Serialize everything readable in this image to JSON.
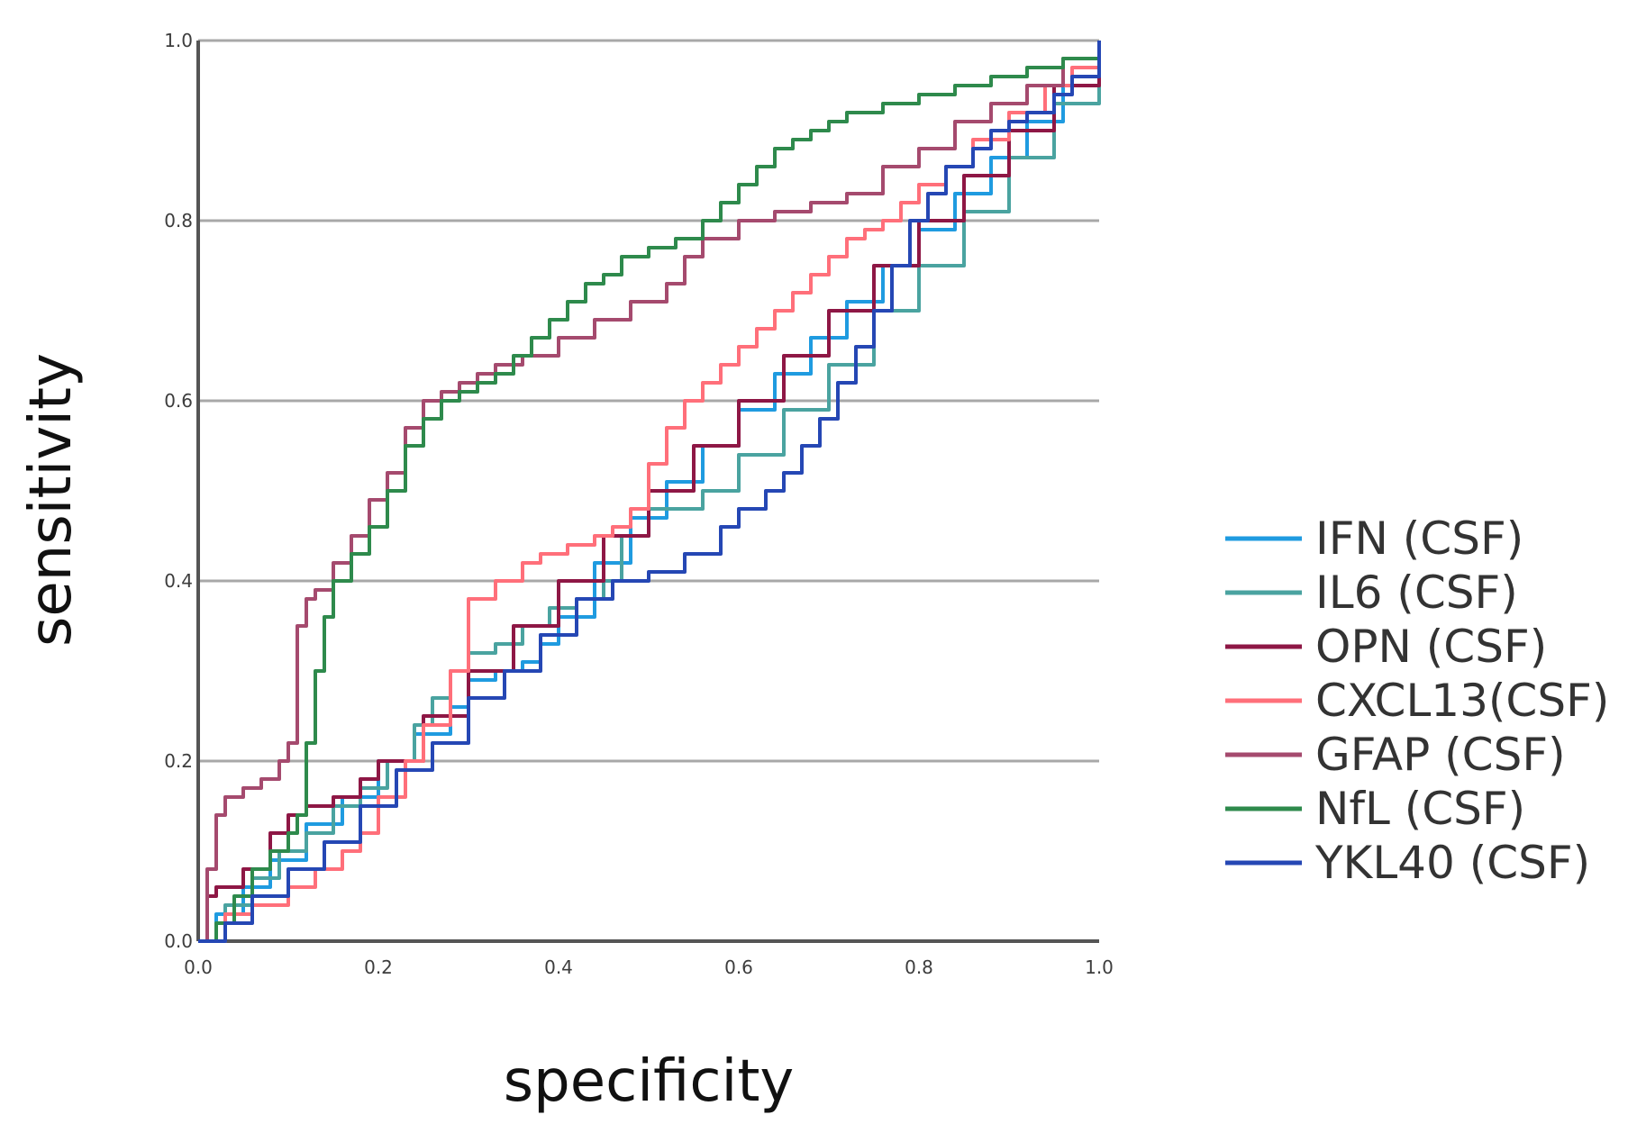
{
  "chart_data": {
    "type": "line",
    "title": "",
    "xlabel": "specificity",
    "ylabel": "sensitivity",
    "xlim": [
      0,
      1
    ],
    "ylim": [
      0,
      1
    ],
    "x_ticks": [
      "0.0",
      "0.2",
      "0.4",
      "0.6",
      "0.8",
      "1.0"
    ],
    "y_ticks": [
      "0.0",
      "0.2",
      "0.4",
      "0.6",
      "0.8",
      "1.0"
    ],
    "grid": "horizontal",
    "legend_position": "right",
    "series": [
      {
        "name": "IFN  (CSF)",
        "color": "#1f9be0",
        "x": [
          0,
          0.02,
          0.05,
          0.08,
          0.12,
          0.16,
          0.2,
          0.24,
          0.28,
          0.3,
          0.33,
          0.36,
          0.38,
          0.4,
          0.44,
          0.48,
          0.52,
          0.56,
          0.6,
          0.64,
          0.68,
          0.72,
          0.76,
          0.8,
          0.84,
          0.88,
          0.92,
          0.96,
          1
        ],
        "y": [
          0,
          0.03,
          0.06,
          0.09,
          0.13,
          0.16,
          0.2,
          0.23,
          0.26,
          0.29,
          0.3,
          0.31,
          0.33,
          0.36,
          0.42,
          0.47,
          0.51,
          0.55,
          0.59,
          0.63,
          0.67,
          0.71,
          0.75,
          0.79,
          0.83,
          0.87,
          0.91,
          0.95,
          1
        ]
      },
      {
        "name": "IL6 (CSF)",
        "color": "#4aa3a0",
        "x": [
          0,
          0.03,
          0.06,
          0.09,
          0.12,
          0.15,
          0.18,
          0.21,
          0.24,
          0.26,
          0.28,
          0.3,
          0.33,
          0.36,
          0.39,
          0.42,
          0.45,
          0.47,
          0.5,
          0.54,
          0.56,
          0.6,
          0.65,
          0.7,
          0.75,
          0.8,
          0.85,
          0.9,
          0.95,
          1
        ],
        "y": [
          0,
          0.04,
          0.07,
          0.1,
          0.12,
          0.15,
          0.17,
          0.2,
          0.24,
          0.27,
          0.3,
          0.32,
          0.33,
          0.35,
          0.37,
          0.38,
          0.4,
          0.45,
          0.48,
          0.48,
          0.5,
          0.54,
          0.59,
          0.64,
          0.7,
          0.75,
          0.81,
          0.87,
          0.93,
          1
        ]
      },
      {
        "name": "OPN (CSF)",
        "color": "#8e1745",
        "x": [
          0,
          0.01,
          0.02,
          0.05,
          0.08,
          0.1,
          0.12,
          0.15,
          0.18,
          0.2,
          0.25,
          0.3,
          0.35,
          0.4,
          0.45,
          0.5,
          0.55,
          0.6,
          0.65,
          0.7,
          0.75,
          0.8,
          0.85,
          0.9,
          0.95,
          1
        ],
        "y": [
          0,
          0.05,
          0.06,
          0.08,
          0.12,
          0.14,
          0.15,
          0.16,
          0.18,
          0.2,
          0.25,
          0.3,
          0.35,
          0.4,
          0.45,
          0.5,
          0.55,
          0.6,
          0.65,
          0.7,
          0.75,
          0.8,
          0.85,
          0.9,
          0.95,
          1
        ]
      },
      {
        "name": "CXCL13(CSF)",
        "color": "#ff6f7a",
        "x": [
          0,
          0.03,
          0.06,
          0.1,
          0.13,
          0.16,
          0.18,
          0.2,
          0.23,
          0.25,
          0.28,
          0.3,
          0.33,
          0.36,
          0.38,
          0.41,
          0.44,
          0.46,
          0.48,
          0.5,
          0.52,
          0.54,
          0.56,
          0.58,
          0.6,
          0.62,
          0.64,
          0.66,
          0.68,
          0.7,
          0.72,
          0.74,
          0.76,
          0.78,
          0.8,
          0.83,
          0.86,
          0.9,
          0.94,
          0.97,
          1
        ],
        "y": [
          0,
          0.03,
          0.04,
          0.06,
          0.08,
          0.1,
          0.12,
          0.16,
          0.2,
          0.24,
          0.3,
          0.38,
          0.4,
          0.42,
          0.43,
          0.44,
          0.45,
          0.46,
          0.48,
          0.53,
          0.57,
          0.6,
          0.62,
          0.64,
          0.66,
          0.68,
          0.7,
          0.72,
          0.74,
          0.76,
          0.78,
          0.79,
          0.8,
          0.82,
          0.84,
          0.86,
          0.89,
          0.92,
          0.95,
          0.97,
          1
        ]
      },
      {
        "name": "GFAP (CSF)",
        "color": "#a54a6e",
        "x": [
          0,
          0.01,
          0.02,
          0.03,
          0.05,
          0.07,
          0.09,
          0.1,
          0.11,
          0.12,
          0.13,
          0.15,
          0.17,
          0.19,
          0.21,
          0.23,
          0.25,
          0.27,
          0.29,
          0.31,
          0.33,
          0.36,
          0.4,
          0.44,
          0.48,
          0.52,
          0.54,
          0.56,
          0.6,
          0.64,
          0.68,
          0.72,
          0.76,
          0.8,
          0.84,
          0.88,
          0.92,
          0.96,
          1
        ],
        "y": [
          0,
          0.08,
          0.14,
          0.16,
          0.17,
          0.18,
          0.2,
          0.22,
          0.35,
          0.38,
          0.39,
          0.42,
          0.45,
          0.49,
          0.52,
          0.57,
          0.6,
          0.61,
          0.62,
          0.63,
          0.64,
          0.65,
          0.67,
          0.69,
          0.71,
          0.73,
          0.76,
          0.78,
          0.8,
          0.81,
          0.82,
          0.83,
          0.86,
          0.88,
          0.91,
          0.93,
          0.95,
          0.98,
          1
        ]
      },
      {
        "name": "NfL (CSF)",
        "color": "#2e8a4c",
        "x": [
          0,
          0.02,
          0.04,
          0.06,
          0.08,
          0.1,
          0.11,
          0.12,
          0.13,
          0.14,
          0.15,
          0.17,
          0.19,
          0.21,
          0.23,
          0.25,
          0.27,
          0.29,
          0.31,
          0.33,
          0.35,
          0.37,
          0.39,
          0.41,
          0.43,
          0.45,
          0.47,
          0.5,
          0.53,
          0.56,
          0.58,
          0.6,
          0.62,
          0.64,
          0.66,
          0.68,
          0.7,
          0.72,
          0.76,
          0.8,
          0.84,
          0.88,
          0.92,
          0.96,
          1
        ],
        "y": [
          0,
          0.02,
          0.05,
          0.08,
          0.1,
          0.12,
          0.14,
          0.22,
          0.3,
          0.36,
          0.4,
          0.43,
          0.46,
          0.5,
          0.55,
          0.58,
          0.6,
          0.61,
          0.62,
          0.63,
          0.65,
          0.67,
          0.69,
          0.71,
          0.73,
          0.74,
          0.76,
          0.77,
          0.78,
          0.8,
          0.82,
          0.84,
          0.86,
          0.88,
          0.89,
          0.9,
          0.91,
          0.92,
          0.93,
          0.94,
          0.95,
          0.96,
          0.97,
          0.98,
          1
        ]
      },
      {
        "name": "YKL40 (CSF)",
        "color": "#2547b4",
        "x": [
          0,
          0.03,
          0.06,
          0.1,
          0.14,
          0.18,
          0.22,
          0.26,
          0.3,
          0.34,
          0.38,
          0.42,
          0.46,
          0.5,
          0.54,
          0.58,
          0.6,
          0.63,
          0.65,
          0.67,
          0.69,
          0.71,
          0.73,
          0.75,
          0.77,
          0.79,
          0.81,
          0.83,
          0.86,
          0.88,
          0.9,
          0.92,
          0.95,
          0.97,
          1
        ],
        "y": [
          0,
          0.02,
          0.05,
          0.08,
          0.11,
          0.15,
          0.19,
          0.22,
          0.27,
          0.3,
          0.34,
          0.38,
          0.4,
          0.41,
          0.43,
          0.46,
          0.48,
          0.5,
          0.52,
          0.55,
          0.58,
          0.62,
          0.66,
          0.7,
          0.75,
          0.8,
          0.83,
          0.86,
          0.88,
          0.9,
          0.91,
          0.92,
          0.94,
          0.96,
          1
        ]
      }
    ]
  }
}
